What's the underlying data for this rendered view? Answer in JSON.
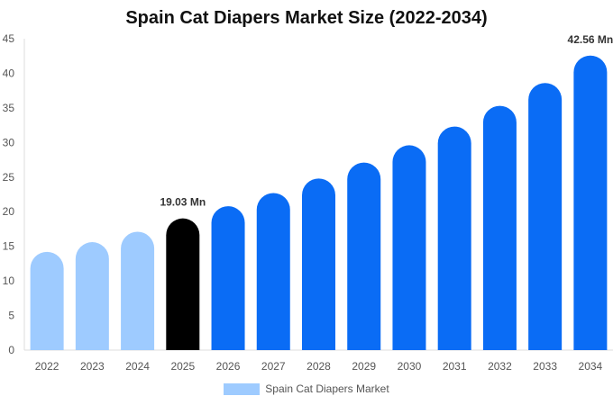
{
  "chart_data": {
    "type": "bar",
    "title": "Spain Cat Diapers Market Size (2022-2034)",
    "categories": [
      "2022",
      "2023",
      "2024",
      "2025",
      "2026",
      "2027",
      "2028",
      "2029",
      "2030",
      "2031",
      "2032",
      "2033",
      "2034"
    ],
    "series": [
      {
        "name": "Spain Cat Diapers Market",
        "values": [
          14.2,
          15.6,
          17.1,
          19.03,
          20.8,
          22.7,
          24.8,
          27.1,
          29.6,
          32.3,
          35.3,
          38.6,
          42.56
        ]
      }
    ],
    "bar_colors": [
      "#9ecbff",
      "#9ecbff",
      "#9ecbff",
      "#000000",
      "#0a6cf5",
      "#0a6cf5",
      "#0a6cf5",
      "#0a6cf5",
      "#0a6cf5",
      "#0a6cf5",
      "#0a6cf5",
      "#0a6cf5",
      "#0a6cf5"
    ],
    "data_labels": [
      {
        "category": "2025",
        "text": "19.03 Mn"
      },
      {
        "category": "2034",
        "text": "42.56 Mn"
      }
    ],
    "ylim": [
      0,
      45
    ],
    "yticks": [
      0,
      5,
      10,
      15,
      20,
      25,
      30,
      35,
      40,
      45
    ],
    "grid": false,
    "legend_position": "bottom-center",
    "legend_color": "#9ecbff"
  }
}
